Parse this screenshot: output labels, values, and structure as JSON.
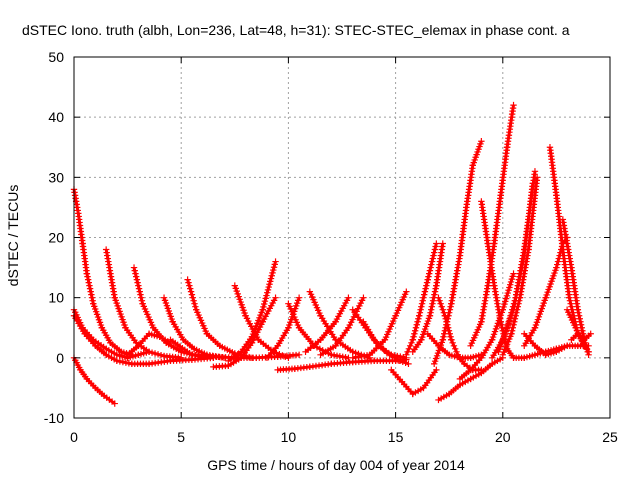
{
  "chart_data": {
    "type": "scatter",
    "title": "dSTEC Iono. truth (albh, Lon=236, Lat=48, h=31): STEC-STEC_elemax in phase cont. a",
    "xlabel": "GPS time / hours of day 004 of year 2014",
    "ylabel": "dSTEC  / TECUs",
    "xlim": [
      0,
      25
    ],
    "ylim": [
      -10,
      50
    ],
    "xticks": [
      "0",
      "5",
      "10",
      "15",
      "20",
      "25"
    ],
    "yticks": [
      "-10",
      "0",
      "10",
      "20",
      "30",
      "40",
      "50"
    ],
    "grid": true,
    "marker": "+",
    "color": "#ff0000",
    "series": [
      {
        "x": [
          0.0,
          0.3,
          0.6,
          1.0,
          1.4,
          1.9
        ],
        "y": [
          0,
          -2,
          -3.5,
          -5,
          -6.3,
          -7.6
        ]
      },
      {
        "x": [
          0.0,
          0.4,
          0.9,
          1.5,
          2.0,
          2.5,
          3.0,
          3.5
        ],
        "y": [
          8,
          5,
          3,
          1.5,
          0.5,
          0,
          0.5,
          1
        ]
      },
      {
        "x": [
          0.0,
          0.2,
          0.4,
          0.6,
          0.9,
          1.3,
          1.7,
          2.2,
          2.7
        ],
        "y": [
          28,
          24,
          19,
          14,
          9,
          5,
          2.5,
          1,
          0.5
        ]
      },
      {
        "x": [
          1.5,
          1.9,
          2.4,
          2.9,
          3.5,
          4.2,
          5.0
        ],
        "y": [
          18,
          10,
          5,
          2.5,
          1,
          0.3,
          0
        ]
      },
      {
        "x": [
          0.0,
          0.5,
          1.0,
          1.5,
          2.0,
          2.7,
          3.5,
          4.5,
          5.5,
          6.5
        ],
        "y": [
          7,
          4,
          2,
          0.5,
          -0.5,
          -1,
          -1,
          -0.5,
          -0.3,
          0
        ]
      },
      {
        "x": [
          2.8,
          3.2,
          3.7,
          4.3,
          5.0,
          5.8,
          6.5
        ],
        "y": [
          15,
          9,
          5,
          2.5,
          1,
          0.3,
          0
        ]
      },
      {
        "x": [
          4.2,
          4.6,
          5.1,
          5.6,
          6.2,
          7.0
        ],
        "y": [
          10,
          6,
          3,
          1.5,
          0.5,
          0
        ]
      },
      {
        "x": [
          5.3,
          5.7,
          6.2,
          6.8,
          7.5,
          8.3
        ],
        "y": [
          13,
          8,
          4,
          2,
          0.7,
          0
        ]
      },
      {
        "x": [
          2.5,
          3.0,
          3.5,
          4.0,
          4.5
        ],
        "y": [
          0.5,
          2,
          4,
          3.5,
          2.5
        ]
      },
      {
        "x": [
          6.5,
          7.2,
          7.8,
          8.3,
          8.8,
          9.4
        ],
        "y": [
          -1.5,
          -1.3,
          0,
          2.5,
          6,
          10
        ]
      },
      {
        "x": [
          7.2,
          7.8,
          8.3,
          8.8,
          9.4
        ],
        "y": [
          -0.5,
          1,
          3.5,
          8,
          16
        ]
      },
      {
        "x": [
          7.5,
          8.0,
          8.6,
          9.3,
          10.0
        ],
        "y": [
          12,
          7,
          3,
          1,
          0
        ]
      },
      {
        "x": [
          4.5,
          5.5,
          6.5,
          7.5,
          8.5,
          9.5,
          10.5
        ],
        "y": [
          3,
          0.5,
          0.2,
          0,
          0,
          0.2,
          0.5
        ]
      },
      {
        "x": [
          9.0,
          9.5,
          10.0,
          10.5
        ],
        "y": [
          0,
          2,
          5,
          10
        ]
      },
      {
        "x": [
          9.5,
          10.3,
          11.0,
          12.0,
          13.0,
          14.0,
          15.0,
          15.5
        ],
        "y": [
          -2,
          -1.8,
          -1.5,
          -1.0,
          -0.7,
          -0.5,
          -0.5,
          -0.3
        ]
      },
      {
        "x": [
          10.0,
          10.5,
          11.2,
          12.0,
          12.8
        ],
        "y": [
          9,
          5,
          2,
          0.5,
          0
        ]
      },
      {
        "x": [
          11.0,
          11.5,
          12.2,
          13.0,
          13.8
        ],
        "y": [
          11,
          7,
          3,
          1,
          0
        ]
      },
      {
        "x": [
          11.5,
          12.2,
          12.8,
          13.5
        ],
        "y": [
          0.5,
          2,
          5,
          10
        ]
      },
      {
        "x": [
          10.8,
          11.5,
          12.2,
          12.8
        ],
        "y": [
          1,
          3,
          6,
          10
        ]
      },
      {
        "x": [
          13.0,
          13.6,
          14.2,
          14.8,
          15.5
        ],
        "y": [
          8,
          5,
          2,
          0.5,
          0
        ]
      },
      {
        "x": [
          13.5,
          14.0,
          14.6,
          15.2,
          15.6
        ],
        "y": [
          6,
          3,
          0.8,
          -0.5,
          -1
        ]
      },
      {
        "x": [
          13.0,
          13.8,
          14.5,
          15.0,
          15.5
        ],
        "y": [
          0,
          0.5,
          3,
          7,
          11
        ]
      },
      {
        "x": [
          14.8,
          15.3,
          15.8,
          16.3,
          16.9
        ],
        "y": [
          -2,
          -4,
          -6,
          -5,
          -2
        ]
      },
      {
        "x": [
          15.5,
          15.8,
          16.1,
          16.5,
          16.9
        ],
        "y": [
          0.5,
          3,
          7,
          13,
          19
        ]
      },
      {
        "x": [
          15.8,
          16.2,
          16.6,
          16.9,
          17.2
        ],
        "y": [
          1,
          3,
          7,
          12,
          19
        ]
      },
      {
        "x": [
          16.5,
          17.0,
          17.5,
          18.0,
          18.5,
          19.0
        ],
        "y": [
          4,
          2,
          0.5,
          0,
          0,
          0.5
        ]
      },
      {
        "x": [
          17.0,
          17.3,
          17.6,
          17.9,
          18.2,
          18.6,
          19.0
        ],
        "y": [
          10,
          7,
          3,
          0.5,
          -1,
          -2,
          -2
        ]
      },
      {
        "x": [
          16.8,
          17.2,
          17.6,
          18.0,
          18.3,
          18.6,
          19.0
        ],
        "y": [
          -1,
          3,
          9,
          17,
          25,
          32,
          36
        ]
      },
      {
        "x": [
          17.0,
          17.5,
          18.0,
          18.5,
          19.0,
          19.5,
          20.0
        ],
        "y": [
          -7,
          -6,
          -4.5,
          -3.5,
          -2.5,
          -1,
          0
        ]
      },
      {
        "x": [
          18.0,
          18.5,
          19.0,
          19.5,
          20.0,
          20.5
        ],
        "y": [
          -3.5,
          -2,
          0,
          3,
          8,
          14
        ]
      },
      {
        "x": [
          18.5,
          19.0,
          19.3,
          19.6,
          19.9,
          20.2,
          20.5
        ],
        "y": [
          2,
          6,
          12,
          19,
          27,
          35,
          42
        ]
      },
      {
        "x": [
          19.0,
          19.3,
          19.6,
          19.9,
          20.2,
          20.5
        ],
        "y": [
          26,
          19,
          12,
          6,
          1.5,
          0
        ]
      },
      {
        "x": [
          19.5,
          20.0,
          20.5,
          21.0,
          21.4
        ],
        "y": [
          0,
          3,
          8,
          17,
          29
        ]
      },
      {
        "x": [
          19.8,
          20.2,
          20.6,
          21.0,
          21.5
        ],
        "y": [
          1,
          5,
          10,
          18,
          31
        ]
      },
      {
        "x": [
          20.0,
          20.4,
          20.8,
          21.2,
          21.6
        ],
        "y": [
          0.5,
          4,
          10,
          18,
          30
        ]
      },
      {
        "x": [
          20.5,
          21.0,
          21.5,
          22.0,
          22.5,
          23.0,
          23.5,
          24.0
        ],
        "y": [
          0,
          0,
          0.5,
          1,
          1.5,
          2,
          2,
          2
        ]
      },
      {
        "x": [
          21.0,
          21.5,
          22.0,
          22.5,
          22.8,
          23.0
        ],
        "y": [
          2,
          5,
          10,
          15,
          19,
          20
        ]
      },
      {
        "x": [
          21.0,
          21.5,
          22.0,
          22.5,
          23.0
        ],
        "y": [
          4,
          2,
          0.5,
          1,
          2
        ]
      },
      {
        "x": [
          22.2,
          22.5,
          22.8,
          23.1,
          23.5,
          24.0
        ],
        "y": [
          35,
          27,
          18,
          10,
          4,
          1
        ]
      },
      {
        "x": [
          22.8,
          23.2,
          23.5,
          23.8,
          24.0
        ],
        "y": [
          23,
          15,
          8,
          3,
          0.5
        ]
      },
      {
        "x": [
          23.0,
          23.4,
          23.8,
          24.0
        ],
        "y": [
          8,
          5,
          2,
          1
        ]
      },
      {
        "x": [
          23.2,
          23.5,
          23.8,
          24.1
        ],
        "y": [
          3,
          4,
          3,
          4
        ]
      }
    ]
  }
}
